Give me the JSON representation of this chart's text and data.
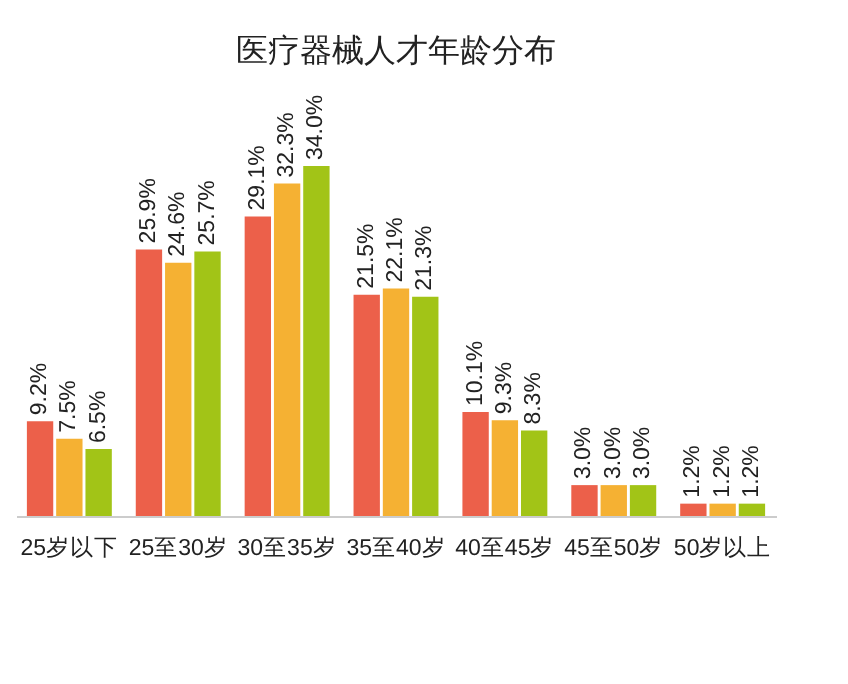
{
  "chart_data": {
    "type": "bar",
    "title": "医疗器械人才年龄分布",
    "categories": [
      "25岁以下",
      "25至30岁",
      "30至35岁",
      "35至40岁",
      "40至45岁",
      "45至50岁",
      "50岁以上"
    ],
    "series": [
      {
        "color": "#ec604a",
        "values": [
          9.2,
          25.9,
          29.1,
          21.5,
          10.1,
          3.0,
          1.2
        ],
        "value_labels": [
          "9.2%",
          "25.9%",
          "29.1%",
          "21.5%",
          "10.1%",
          "3.0%",
          "1.2%"
        ]
      },
      {
        "color": "#f5b133",
        "values": [
          7.5,
          24.6,
          32.3,
          22.1,
          9.3,
          3.0,
          1.2
        ],
        "value_labels": [
          "7.5%",
          "24.6%",
          "32.3%",
          "22.1%",
          "9.3%",
          "3.0%",
          "1.2%"
        ]
      },
      {
        "color": "#a2c417",
        "values": [
          6.5,
          25.7,
          34.0,
          21.3,
          8.3,
          3.0,
          1.2
        ],
        "value_labels": [
          "6.5%",
          "25.7%",
          "34.0%",
          "21.3%",
          "8.3%",
          "3.0%",
          "1.2%"
        ]
      }
    ],
    "legend": false
  }
}
